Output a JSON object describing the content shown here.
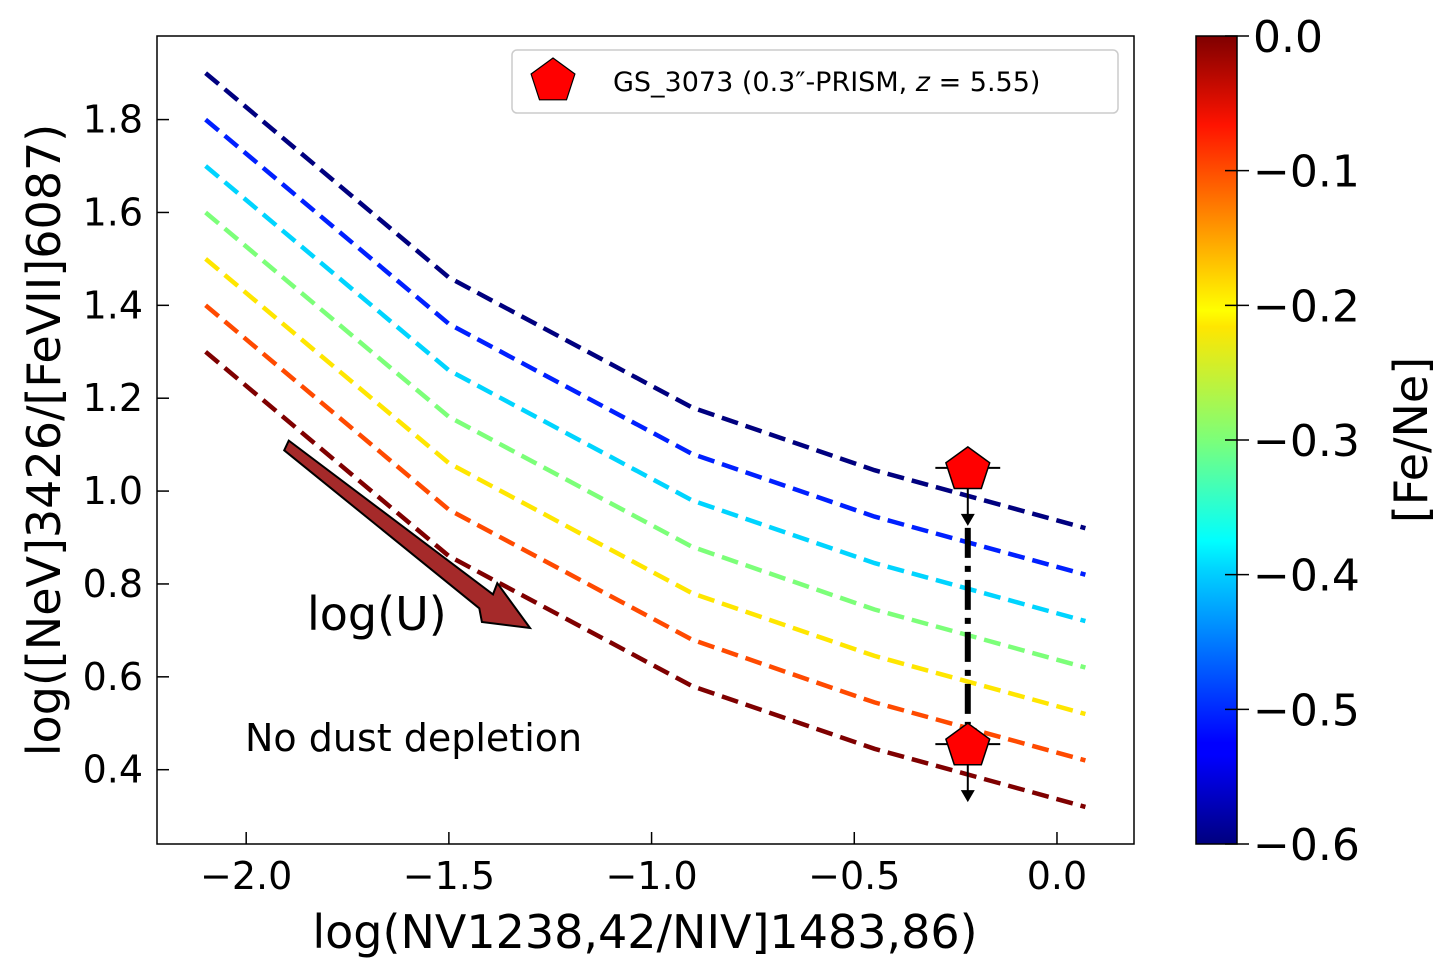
{
  "chart_data": {
    "type": "line",
    "xlabel": "log(NV1238,42/NIV]1483,86)",
    "ylabel": "log([NeV]3426/[FeVII]6087)",
    "xlim": [
      -2.22,
      0.19
    ],
    "ylim": [
      0.24,
      1.98
    ],
    "xticks": [
      -2.0,
      -1.5,
      -1.0,
      -0.5,
      0.0
    ],
    "xtick_labels": [
      "−2.0",
      "−1.5",
      "−1.0",
      "−0.5",
      "0.0"
    ],
    "yticks": [
      0.4,
      0.6,
      0.8,
      1.0,
      1.2,
      1.4,
      1.6,
      1.8
    ],
    "ytick_labels": [
      "0.4",
      "0.6",
      "0.8",
      "1.0",
      "1.2",
      "1.4",
      "1.6",
      "1.8"
    ],
    "x": [
      -2.1,
      -1.5,
      -0.9,
      -0.45,
      0.07
    ],
    "series": [
      {
        "name": "[Fe/Ne] = -0.6",
        "color": "#00007f",
        "values": [
          1.9,
          1.46,
          1.18,
          1.045,
          0.92
        ]
      },
      {
        "name": "[Fe/Ne] = -0.5",
        "color": "#0020ff",
        "values": [
          1.8,
          1.36,
          1.08,
          0.945,
          0.82
        ]
      },
      {
        "name": "[Fe/Ne] = -0.4",
        "color": "#00d4ff",
        "values": [
          1.7,
          1.26,
          0.98,
          0.845,
          0.72
        ]
      },
      {
        "name": "[Fe/Ne] = -0.3",
        "color": "#7cff79",
        "values": [
          1.6,
          1.16,
          0.88,
          0.745,
          0.62
        ]
      },
      {
        "name": "[Fe/Ne] = -0.2",
        "color": "#ffe600",
        "values": [
          1.5,
          1.06,
          0.78,
          0.645,
          0.52
        ]
      },
      {
        "name": "[Fe/Ne] = -0.1",
        "color": "#ff4a00",
        "values": [
          1.4,
          0.96,
          0.68,
          0.545,
          0.42
        ]
      },
      {
        "name": "[Fe/Ne] = 0.0",
        "color": "#7f0000",
        "values": [
          1.3,
          0.86,
          0.58,
          0.445,
          0.32
        ]
      }
    ],
    "observations": [
      {
        "name": "GS_3073 (0.3″-PRISM, z = 5.55)",
        "x": -0.22,
        "y_values": [
          1.05,
          0.455
        ],
        "marker": "pentagon",
        "color": "#ff0000",
        "upper_limits": true,
        "x_err": 0.08
      }
    ],
    "legend": {
      "position": "top-right",
      "label_main": "GS_3073 (0.3",
      "label_prime": "″",
      "label_mid": "-PRISM, ",
      "label_z": "z",
      "label_end": " = 5.55)"
    },
    "annotations": {
      "arrow_label": "log(U)",
      "arrow_label_color": "#a52a2a",
      "arrow_color": "#a52a2a",
      "note": "No dust depletion"
    },
    "colorbar": {
      "label": "[Fe/Ne]",
      "range": [
        -0.6,
        0.0
      ],
      "ticks": [
        0.0,
        -0.1,
        -0.2,
        -0.3,
        -0.4,
        -0.5,
        -0.6
      ],
      "tick_labels": [
        "0.0",
        "−0.1",
        "−0.2",
        "−0.3",
        "−0.4",
        "−0.5",
        "−0.6"
      ],
      "colormap": "jet"
    }
  }
}
